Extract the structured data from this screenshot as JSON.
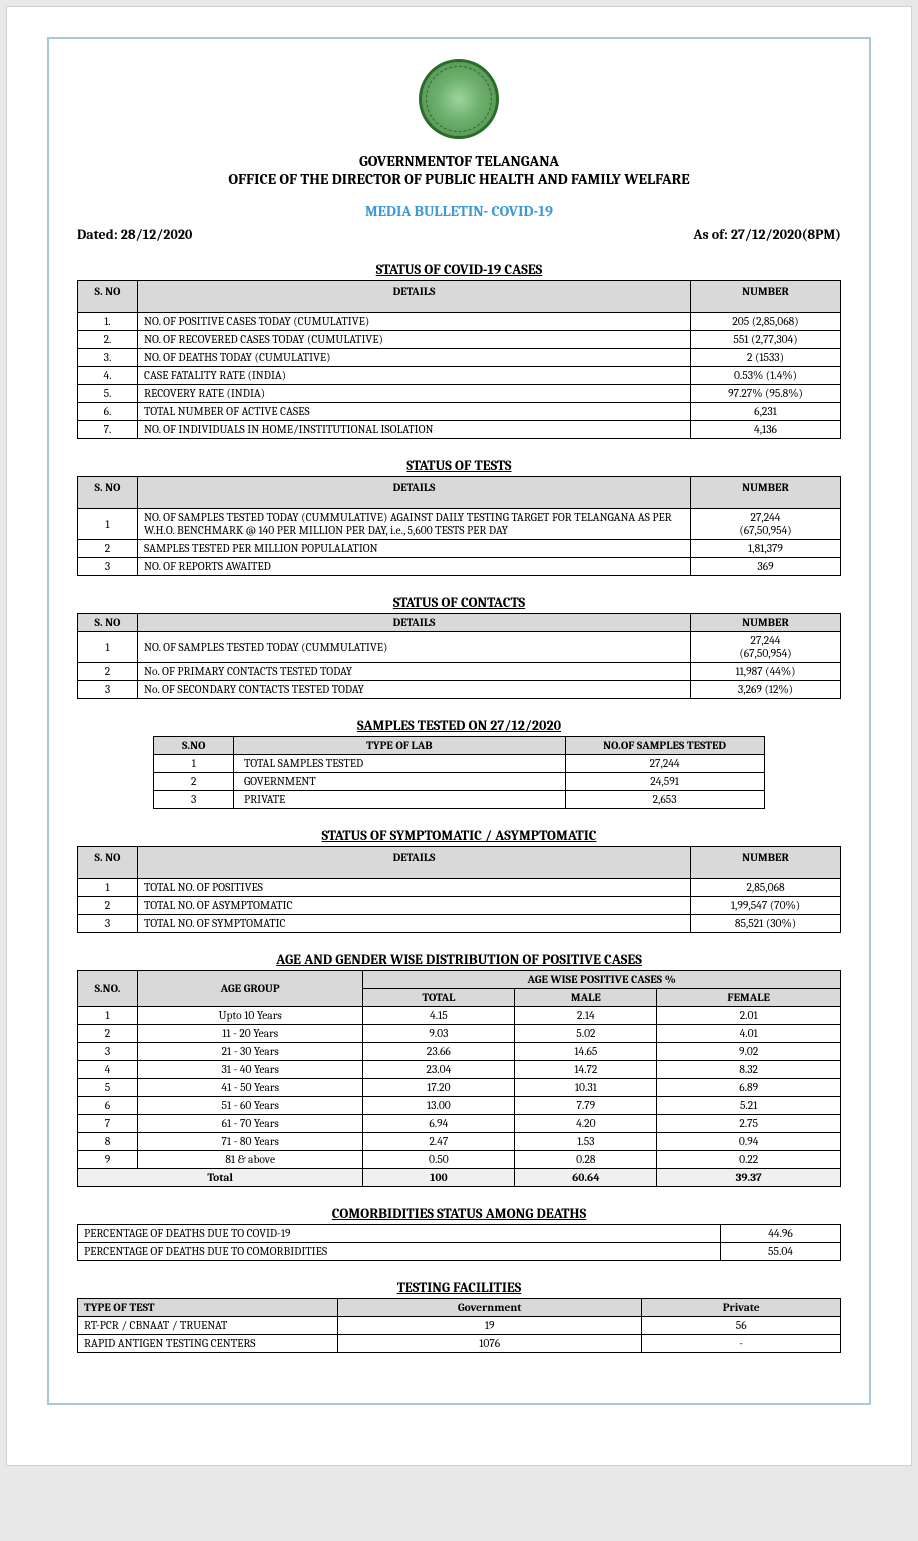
{
  "header": {
    "gov": "GOVERNMENTOF TELANGANA",
    "office": "OFFICE OF THE DIRECTOR OF PUBLIC HEALTH AND FAMILY WELFARE",
    "bulletin": "MEDIA BULLETIN- COVID-19",
    "dated_label": "Dated: 28/12/2020",
    "asof_label": "As of: 27/12/2020(8PM)"
  },
  "cases": {
    "title": "STATUS OF COVID-19 CASES",
    "cols": [
      "S. NO",
      "DETAILS",
      "NUMBER"
    ],
    "rows": [
      [
        "1.",
        "NO. OF POSITIVE CASES TODAY (CUMULATIVE)",
        "205 (2,85,068)"
      ],
      [
        "2.",
        "NO. OF RECOVERED CASES TODAY (CUMULATIVE)",
        "551 (2,77,304)"
      ],
      [
        "3.",
        "NO. OF DEATHS TODAY (CUMULATIVE)",
        "2 (1533)"
      ],
      [
        "4.",
        "CASE FATALITY RATE (INDIA)",
        "0.53% (1.4%)"
      ],
      [
        "5.",
        "RECOVERY RATE (INDIA)",
        "97.27% (95.8%)"
      ],
      [
        "6.",
        "TOTAL NUMBER OF ACTIVE CASES",
        "6,231"
      ],
      [
        "7.",
        "NO. OF INDIVIDUALS IN HOME/INSTITUTIONAL ISOLATION",
        "4,136"
      ]
    ]
  },
  "tests": {
    "title": "STATUS OF TESTS",
    "cols": [
      "S. NO",
      "DETAILS",
      "NUMBER"
    ],
    "rows": [
      [
        "1",
        "NO. OF SAMPLES TESTED TODAY (CUMMULATIVE) AGAINST DAILY TESTING TARGET FOR TELANGANA AS PER W.H.O. BENCHMARK @ 140 PER MILLION PER DAY, i.e., 5,600 TESTS PER DAY",
        "27,244\n(67,50,954)"
      ],
      [
        "2",
        "SAMPLES TESTED PER MILLION POPULALATION",
        "1,81,379"
      ],
      [
        "3",
        "NO. OF REPORTS AWAITED",
        "369"
      ]
    ]
  },
  "contacts": {
    "title": "STATUS OF CONTACTS",
    "cols": [
      "S. NO",
      "DETAILS",
      "NUMBER"
    ],
    "rows": [
      [
        "1",
        "NO. OF SAMPLES TESTED TODAY (CUMMULATIVE)",
        "27,244\n(67,50,954)"
      ],
      [
        "2",
        "No. OF PRIMARY CONTACTS TESTED TODAY",
        "11,987 (44%)"
      ],
      [
        "3",
        "No. OF SECONDARY CONTACTS TESTED TODAY",
        "3,269 (12%)"
      ]
    ]
  },
  "samples": {
    "title": "SAMPLES TESTED ON 27/12/2020",
    "cols": [
      "S.NO",
      "TYPE OF LAB",
      "NO.OF SAMPLES TESTED"
    ],
    "rows": [
      [
        "1",
        "TOTAL SAMPLES TESTED",
        "27,244"
      ],
      [
        "2",
        "GOVERNMENT",
        "24,591"
      ],
      [
        "3",
        "PRIVATE",
        "2,653"
      ]
    ]
  },
  "sym": {
    "title": "STATUS OF SYMPTOMATIC / ASYMPTOMATIC",
    "cols": [
      "S. NO",
      "DETAILS",
      "NUMBER"
    ],
    "rows": [
      [
        "1",
        "TOTAL NO. OF POSITIVES",
        "2,85,068"
      ],
      [
        "2",
        "TOTAL NO. OF ASYMPTOMATIC",
        "1,99,547 (70%)"
      ],
      [
        "3",
        "TOTAL NO. OF SYMPTOMATIC",
        "85,521 (30%)"
      ]
    ]
  },
  "age": {
    "title": "AGE AND GENDER WISE DISTRIBUTION OF POSITIVE CASES",
    "group_header": "AGE WISE POSITIVE CASES %",
    "cols": [
      "S.NO.",
      "AGE GROUP",
      "TOTAL",
      "MALE",
      "FEMALE"
    ],
    "rows": [
      [
        "1",
        "Upto 10 Years",
        "4.15",
        "2.14",
        "2.01"
      ],
      [
        "2",
        "11 - 20 Years",
        "9.03",
        "5.02",
        "4.01"
      ],
      [
        "3",
        "21 - 30 Years",
        "23.66",
        "14.65",
        "9.02"
      ],
      [
        "4",
        "31 - 40 Years",
        "23.04",
        "14.72",
        "8.32"
      ],
      [
        "5",
        "41 - 50 Years",
        "17.20",
        "10.31",
        "6.89"
      ],
      [
        "6",
        "51 - 60 Years",
        "13.00",
        "7.79",
        "5.21"
      ],
      [
        "7",
        "61 - 70 Years",
        "6.94",
        "4.20",
        "2.75"
      ],
      [
        "8",
        "71 - 80 Years",
        "2.47",
        "1.53",
        "0.94"
      ],
      [
        "9",
        "81 & above",
        "0.50",
        "0.28",
        "0.22"
      ]
    ],
    "total": [
      "Total",
      "100",
      "60.64",
      "39.37"
    ]
  },
  "comorb": {
    "title": "COMORBIDITIES STATUS AMONG DEATHS",
    "rows": [
      [
        "PERCENTAGE OF DEATHS DUE TO COVID-19",
        "44.96"
      ],
      [
        "PERCENTAGE OF DEATHS DUE TO COMORBIDITIES",
        "55.04"
      ]
    ]
  },
  "facil": {
    "title": "TESTING FACILITIES",
    "cols": [
      "TYPE OF TEST",
      "Government",
      "Private"
    ],
    "rows": [
      [
        "RT-PCR / CBNAAT / TRUENAT",
        "19",
        "56"
      ],
      [
        "RAPID ANTIGEN TESTING CENTERS",
        "1076",
        "-"
      ]
    ]
  }
}
